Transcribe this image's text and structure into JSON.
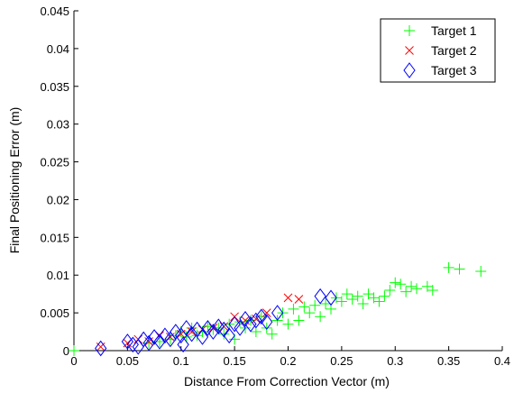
{
  "chart_data": {
    "type": "scatter",
    "title": "",
    "xlabel": "Distance From Correction Vector (m)",
    "ylabel": "Final Positioning Error (m)",
    "xlim": [
      0,
      0.4
    ],
    "ylim": [
      0,
      0.045
    ],
    "xticks": [
      0,
      0.05,
      0.1,
      0.15,
      0.2,
      0.25,
      0.3,
      0.35,
      0.4
    ],
    "xtick_labels": [
      "0",
      "0.05",
      "0.1",
      "0.15",
      "0.2",
      "0.25",
      "0.3",
      "0.35",
      "0.4"
    ],
    "yticks": [
      0,
      0.005,
      0.01,
      0.015,
      0.02,
      0.025,
      0.03,
      0.035,
      0.04,
      0.045
    ],
    "ytick_labels": [
      "0",
      "0.005",
      "0.01",
      "0.015",
      "0.02",
      "0.025",
      "0.03",
      "0.035",
      "0.04",
      "0.045"
    ],
    "grid": false,
    "legend_position": "top-right",
    "series": [
      {
        "name": "Target 1",
        "marker": "plus",
        "color": "#00ff00",
        "points": [
          [
            0.0,
            0.0
          ],
          [
            0.07,
            0.001
          ],
          [
            0.08,
            0.0012
          ],
          [
            0.09,
            0.0015
          ],
          [
            0.095,
            0.002
          ],
          [
            0.1,
            0.0025
          ],
          [
            0.105,
            0.0018
          ],
          [
            0.11,
            0.003
          ],
          [
            0.115,
            0.002
          ],
          [
            0.12,
            0.0025
          ],
          [
            0.125,
            0.0032
          ],
          [
            0.13,
            0.0028
          ],
          [
            0.135,
            0.003
          ],
          [
            0.14,
            0.0022
          ],
          [
            0.145,
            0.0035
          ],
          [
            0.15,
            0.0015
          ],
          [
            0.155,
            0.0038
          ],
          [
            0.16,
            0.003
          ],
          [
            0.165,
            0.004
          ],
          [
            0.17,
            0.0025
          ],
          [
            0.175,
            0.0045
          ],
          [
            0.18,
            0.003
          ],
          [
            0.185,
            0.0022
          ],
          [
            0.19,
            0.004
          ],
          [
            0.195,
            0.005
          ],
          [
            0.2,
            0.0035
          ],
          [
            0.205,
            0.0055
          ],
          [
            0.21,
            0.004
          ],
          [
            0.215,
            0.0058
          ],
          [
            0.22,
            0.005
          ],
          [
            0.225,
            0.006
          ],
          [
            0.23,
            0.0045
          ],
          [
            0.235,
            0.0062
          ],
          [
            0.24,
            0.0055
          ],
          [
            0.245,
            0.007
          ],
          [
            0.25,
            0.0065
          ],
          [
            0.255,
            0.0075
          ],
          [
            0.26,
            0.0068
          ],
          [
            0.265,
            0.0072
          ],
          [
            0.27,
            0.0062
          ],
          [
            0.275,
            0.0075
          ],
          [
            0.28,
            0.007
          ],
          [
            0.285,
            0.0065
          ],
          [
            0.29,
            0.0072
          ],
          [
            0.295,
            0.008
          ],
          [
            0.3,
            0.009
          ],
          [
            0.305,
            0.0088
          ],
          [
            0.31,
            0.0078
          ],
          [
            0.315,
            0.0085
          ],
          [
            0.32,
            0.0082
          ],
          [
            0.33,
            0.0085
          ],
          [
            0.335,
            0.008
          ],
          [
            0.35,
            0.011
          ],
          [
            0.36,
            0.0108
          ],
          [
            0.38,
            0.0105
          ]
        ]
      },
      {
        "name": "Target 2",
        "marker": "x",
        "color": "#ff0000",
        "points": [
          [
            0.025,
            0.0005
          ],
          [
            0.05,
            0.001
          ],
          [
            0.06,
            0.0015
          ],
          [
            0.07,
            0.0012
          ],
          [
            0.08,
            0.002
          ],
          [
            0.09,
            0.0018
          ],
          [
            0.1,
            0.0022
          ],
          [
            0.11,
            0.0025
          ],
          [
            0.12,
            0.0028
          ],
          [
            0.13,
            0.003
          ],
          [
            0.14,
            0.0032
          ],
          [
            0.15,
            0.0045
          ],
          [
            0.16,
            0.004
          ],
          [
            0.17,
            0.0042
          ],
          [
            0.18,
            0.005
          ],
          [
            0.2,
            0.007
          ],
          [
            0.21,
            0.0068
          ]
        ]
      },
      {
        "name": "Target 3",
        "marker": "diamond",
        "color": "#0000ff",
        "points": [
          [
            0.025,
            0.0003
          ],
          [
            0.05,
            0.0012
          ],
          [
            0.055,
            0.0008
          ],
          [
            0.06,
            0.0005
          ],
          [
            0.065,
            0.0015
          ],
          [
            0.07,
            0.001
          ],
          [
            0.075,
            0.0018
          ],
          [
            0.08,
            0.0012
          ],
          [
            0.085,
            0.002
          ],
          [
            0.09,
            0.0015
          ],
          [
            0.095,
            0.0025
          ],
          [
            0.1,
            0.002
          ],
          [
            0.102,
            0.0008
          ],
          [
            0.105,
            0.003
          ],
          [
            0.11,
            0.0022
          ],
          [
            0.115,
            0.0028
          ],
          [
            0.12,
            0.0018
          ],
          [
            0.125,
            0.003
          ],
          [
            0.13,
            0.0025
          ],
          [
            0.135,
            0.0032
          ],
          [
            0.14,
            0.0028
          ],
          [
            0.145,
            0.002
          ],
          [
            0.15,
            0.0035
          ],
          [
            0.155,
            0.003
          ],
          [
            0.16,
            0.0042
          ],
          [
            0.165,
            0.0035
          ],
          [
            0.17,
            0.004
          ],
          [
            0.175,
            0.0045
          ],
          [
            0.18,
            0.0038
          ],
          [
            0.19,
            0.005
          ],
          [
            0.23,
            0.0072
          ],
          [
            0.24,
            0.007
          ]
        ]
      }
    ]
  }
}
